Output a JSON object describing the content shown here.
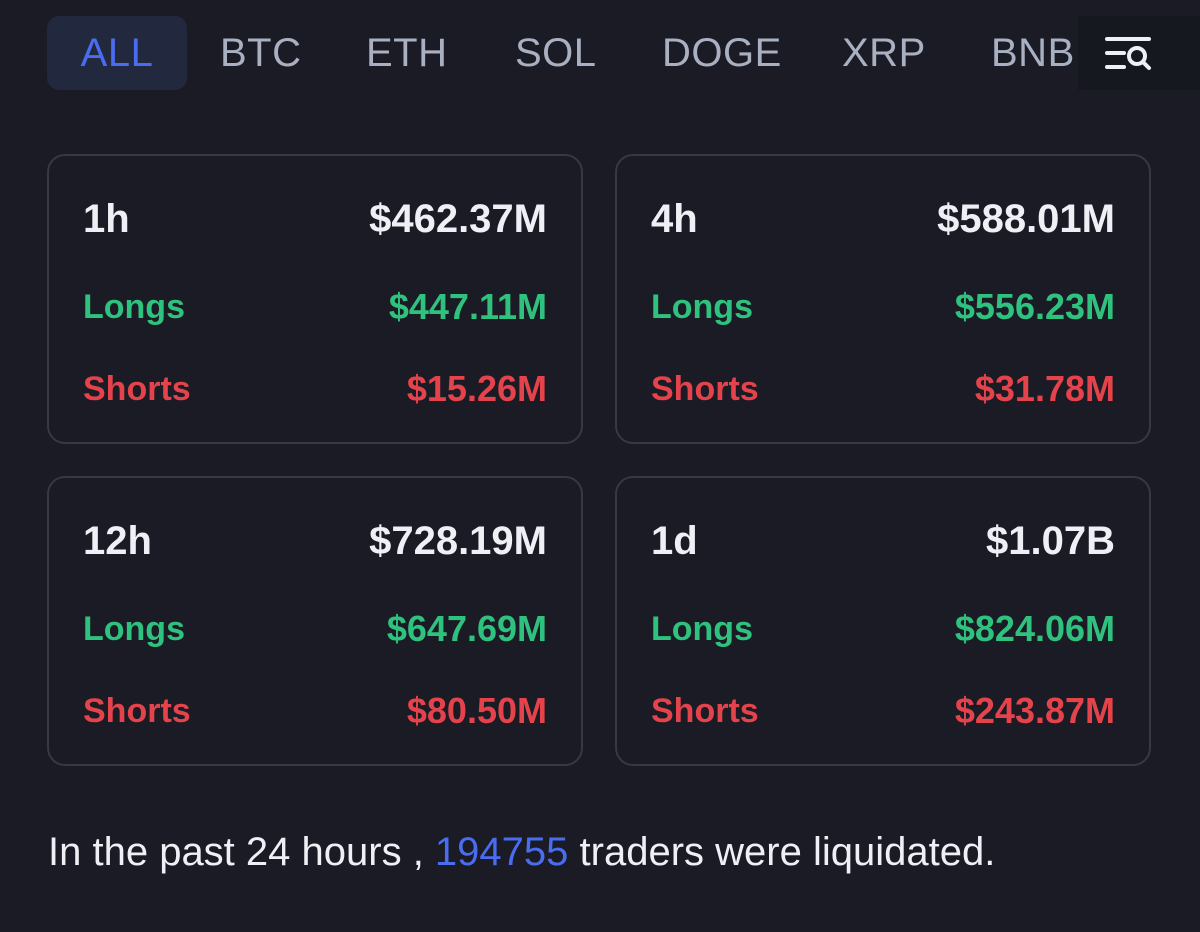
{
  "tabs": [
    {
      "label": "ALL",
      "active": true
    },
    {
      "label": "BTC",
      "active": false
    },
    {
      "label": "ETH",
      "active": false
    },
    {
      "label": "SOL",
      "active": false
    },
    {
      "label": "DOGE",
      "active": false
    },
    {
      "label": "XRP",
      "active": false
    },
    {
      "label": "BNB",
      "active": false
    }
  ],
  "filter_icon": "filter-search-icon",
  "cards": [
    {
      "period": "1h",
      "total": "$462.37M",
      "longs_label": "Longs",
      "longs": "$447.11M",
      "shorts_label": "Shorts",
      "shorts": "$15.26M"
    },
    {
      "period": "4h",
      "total": "$588.01M",
      "longs_label": "Longs",
      "longs": "$556.23M",
      "shorts_label": "Shorts",
      "shorts": "$31.78M"
    },
    {
      "period": "12h",
      "total": "$728.19M",
      "longs_label": "Longs",
      "longs": "$647.69M",
      "shorts_label": "Shorts",
      "shorts": "$80.50M"
    },
    {
      "period": "1d",
      "total": "$1.07B",
      "longs_label": "Longs",
      "longs": "$824.06M",
      "shorts_label": "Shorts",
      "shorts": "$243.87M"
    }
  ],
  "footer": {
    "prefix": "In the past 24 hours , ",
    "count": "194755",
    "suffix": " traders were liquidated."
  },
  "colors": {
    "background": "#1a1b24",
    "accent": "#4a6cf0",
    "longs": "#2ec27e",
    "shorts": "#e5434b"
  }
}
